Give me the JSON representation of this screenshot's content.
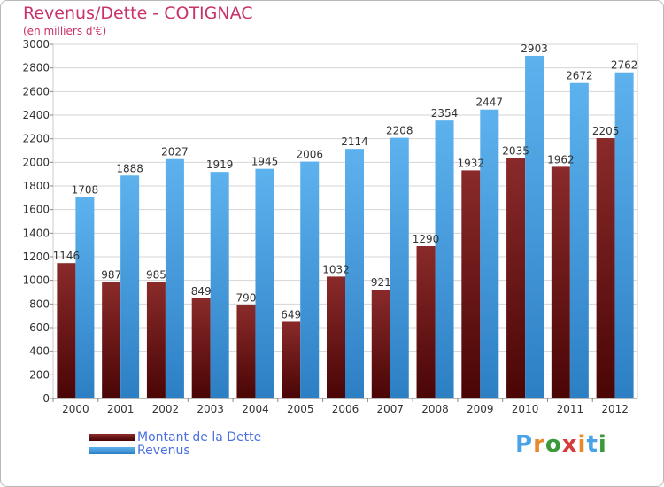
{
  "header": {
    "title": "Revenus/Dette - COTIGNAC",
    "subtitle": "(en milliers d'€)"
  },
  "chart_data": {
    "type": "bar",
    "title": "Revenus/Dette - COTIGNAC",
    "subtitle": "(en milliers d'€)",
    "xlabel": "",
    "ylabel": "",
    "ylim": [
      0,
      3000
    ],
    "yticks": [
      0,
      200,
      400,
      600,
      800,
      1000,
      1200,
      1400,
      1600,
      1800,
      2000,
      2200,
      2400,
      2600,
      2800,
      3000
    ],
    "grid": true,
    "legend_position": "bottom-left",
    "categories": [
      "2000",
      "2001",
      "2002",
      "2003",
      "2004",
      "2005",
      "2006",
      "2007",
      "2008",
      "2009",
      "2010",
      "2011",
      "2012"
    ],
    "series": [
      {
        "name": "Montant de la Dette",
        "color": "#7a1c1c",
        "values": [
          1146,
          987,
          985,
          849,
          790,
          649,
          1032,
          921,
          1290,
          1932,
          2035,
          1962,
          2205
        ],
        "labels": [
          "1146",
          "987",
          "985",
          "849",
          "790",
          "649",
          "1032",
          "921",
          "1290",
          "1932",
          "2035",
          "1962",
          "2205"
        ]
      },
      {
        "name": "Revenus",
        "color": "#4aa3e6",
        "values": [
          1708,
          1888,
          2027,
          1919,
          1945,
          2006,
          2114,
          2208,
          2354,
          2447,
          2903,
          2672,
          2762
        ],
        "labels": [
          "1708",
          "1888",
          "2027",
          "1919",
          "1945",
          "2006",
          "2114",
          "2208",
          "2354",
          "2447",
          "2903",
          "2672",
          "2762"
        ]
      }
    ]
  },
  "legend": {
    "items": [
      {
        "label": "Montant de la Dette",
        "color": "#6b1010"
      },
      {
        "label": "Revenus",
        "color": "#4aa3e6"
      }
    ]
  },
  "logo": {
    "text": "Proxiti",
    "letters": [
      "P",
      "r",
      "o",
      "x",
      "i",
      "t",
      "i"
    ],
    "colors": [
      "#4aa3e6",
      "#e8892a",
      "#3a9a3a",
      "#d83a3a",
      "#e8892a",
      "#4aa3e6",
      "#3a9a3a"
    ]
  }
}
